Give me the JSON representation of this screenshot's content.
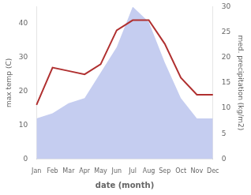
{
  "chart_data": {
    "type": "line",
    "categories": [
      "Jan",
      "Feb",
      "Mar",
      "Apr",
      "May",
      "Jun",
      "Jul",
      "Aug",
      "Sep",
      "Oct",
      "Nov",
      "Dec"
    ],
    "series": [
      {
        "type": "area",
        "color": "#c5cdf0",
        "axis": "y2",
        "values": [
          8,
          9,
          11,
          12,
          17,
          22,
          30,
          27,
          19,
          12,
          8,
          8
        ]
      },
      {
        "type": "line",
        "color": "#b03030",
        "values": [
          16,
          27,
          26,
          25,
          28,
          38,
          41,
          41,
          34,
          24,
          19,
          19
        ]
      }
    ],
    "xlabel": "date (month)",
    "ylabel": "max temp (C)",
    "y2label": "med. precipitation (kg/m2)",
    "ylim": [
      0,
      45
    ],
    "yticks": [
      0,
      10,
      20,
      30,
      40
    ],
    "y2lim": [
      0,
      30
    ],
    "y2ticks": [
      0,
      5,
      10,
      15,
      20,
      25,
      30
    ],
    "grid": false
  }
}
